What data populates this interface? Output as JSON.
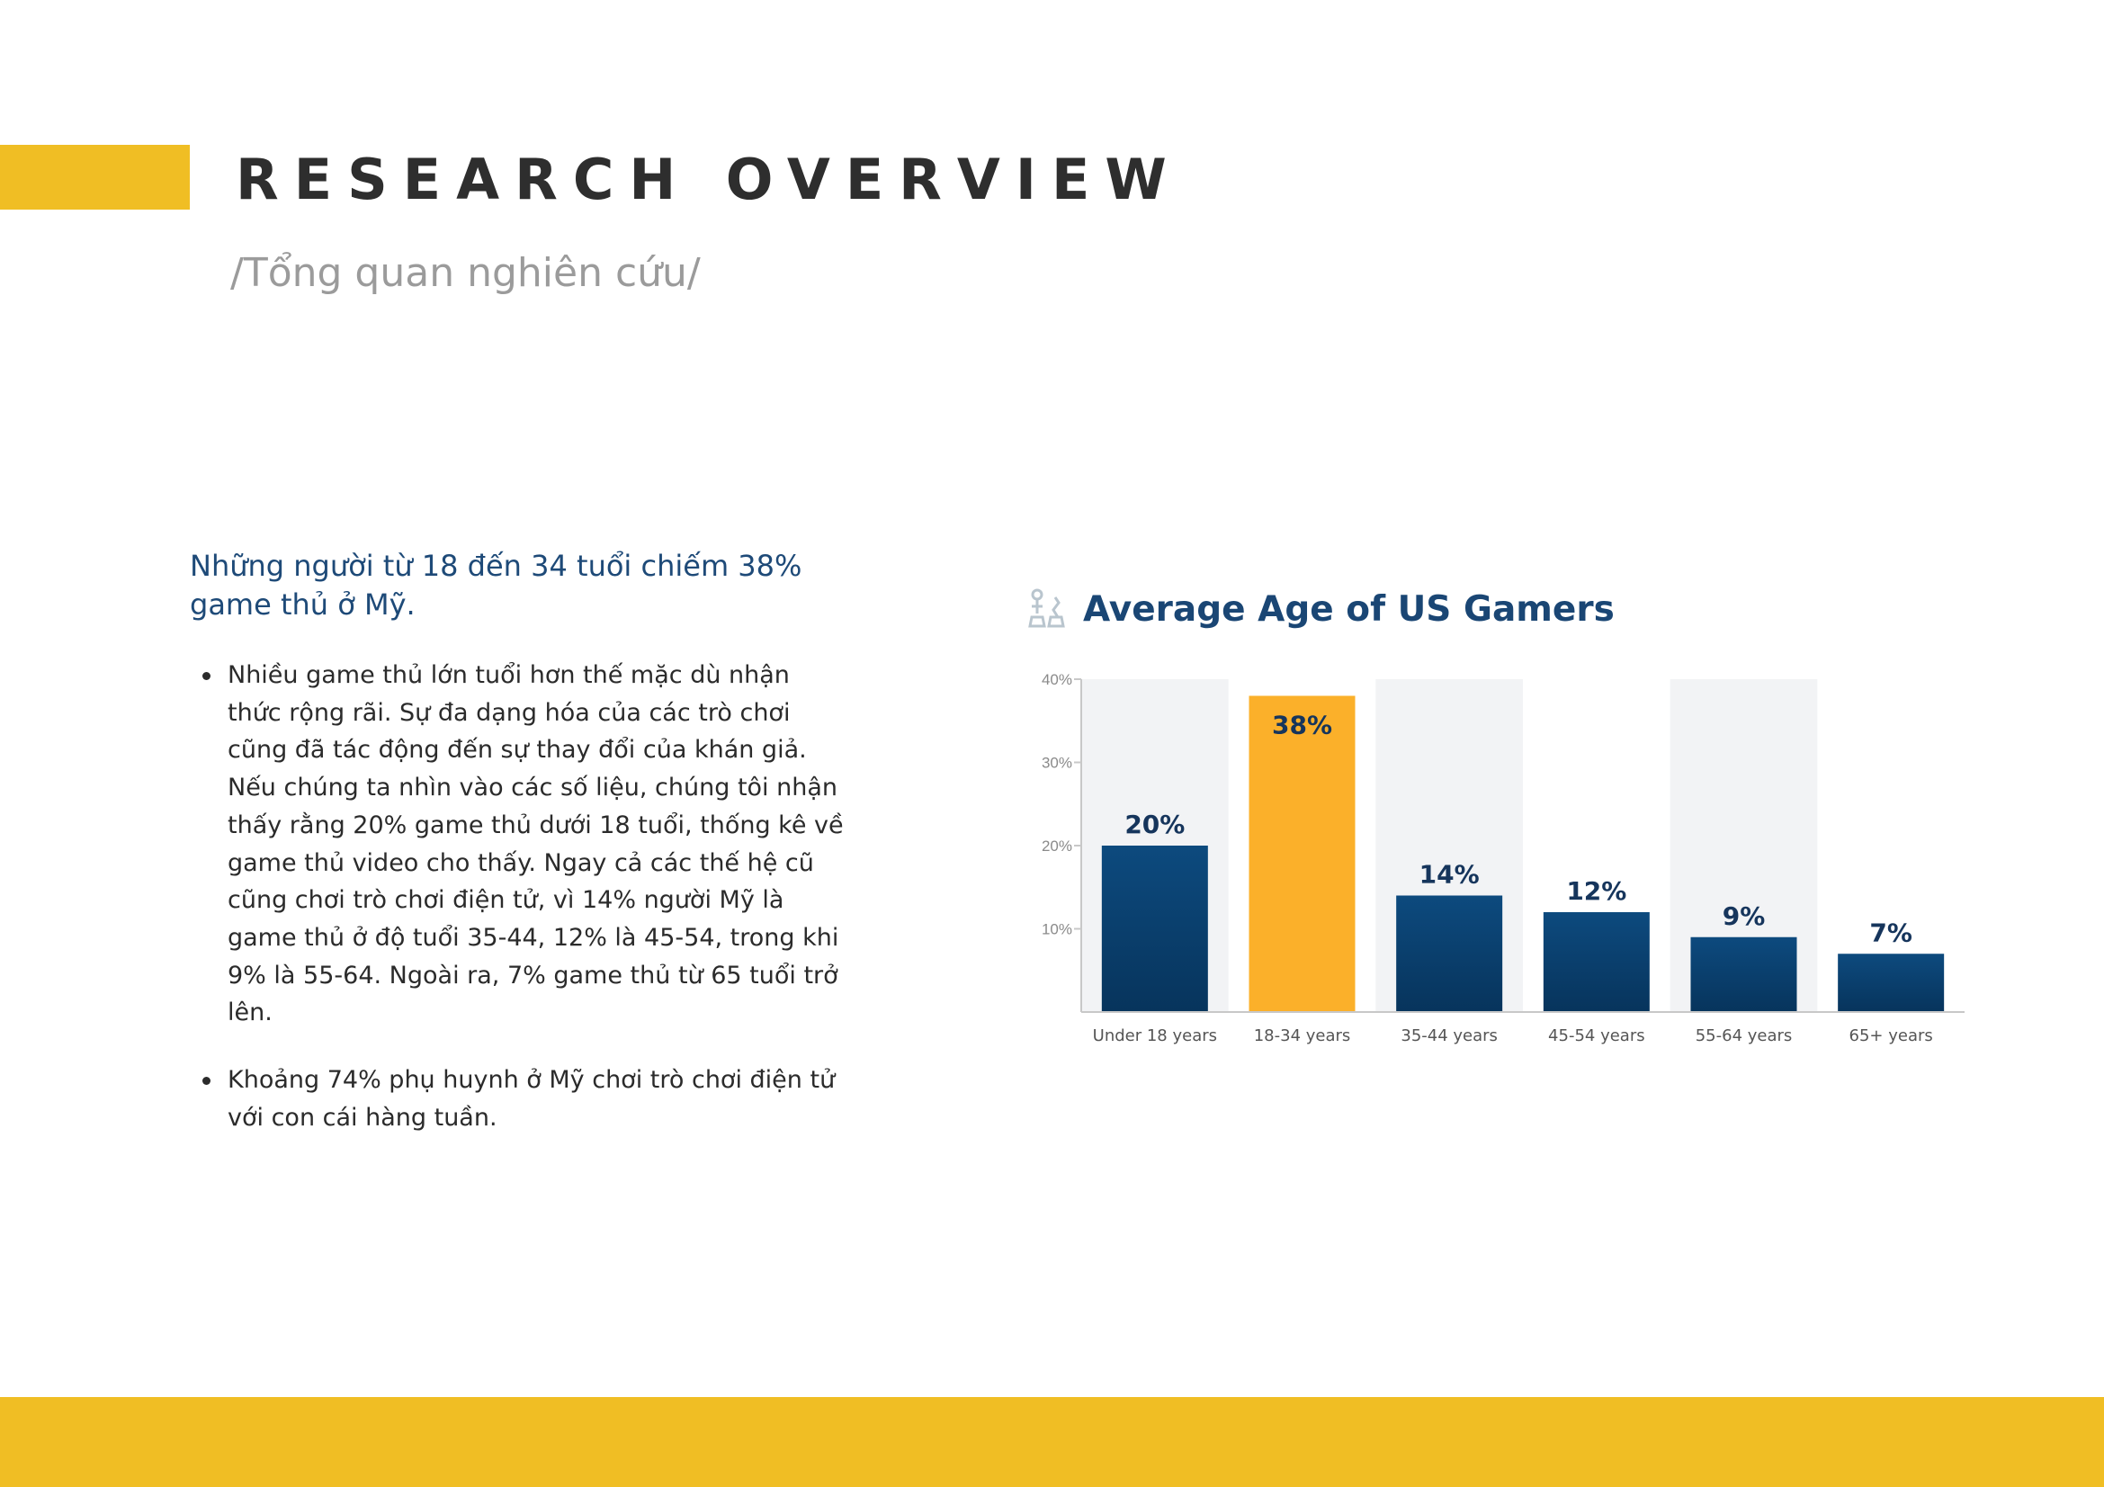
{
  "header": {
    "title": "RESEARCH OVERVIEW",
    "subtitle": "/Tổng quan nghiên cứu/"
  },
  "summary": {
    "headline": "Những người từ 18 đến 34 tuổi chiếm 38% game thủ ở Mỹ.",
    "bullets": [
      "Nhiều game thủ lớn tuổi hơn thế mặc dù nhận thức rộng rãi. Sự đa dạng hóa của các trò chơi cũng đã tác động đến sự thay đổi của khán giả. Nếu chúng ta nhìn vào các số liệu, chúng tôi nhận thấy rằng 20% game thủ dưới 18 tuổi, thống kê về game thủ video cho thấy. Ngay cả các thế hệ cũ cũng chơi trò chơi điện tử, vì 14% người Mỹ là game thủ ở độ tuổi 35-44, 12% là 45-54, trong khi 9% là 55-64. Ngoài ra, 7% game thủ từ 65 tuổi trở lên.",
      "Khoảng 74% phụ huynh ở Mỹ chơi trò chơi điện tử với con cái hàng tuần."
    ]
  },
  "chart_icon": "chess-pieces-icon",
  "chart_data": {
    "type": "bar",
    "title": "Average Age of US Gamers",
    "xlabel": "",
    "ylabel": "",
    "categories": [
      "Under 18 years",
      "18-34 years",
      "35-44 years",
      "45-54 years",
      "55-64 years",
      "65+ years"
    ],
    "values": [
      20,
      38,
      14,
      12,
      9,
      7
    ],
    "value_labels": [
      "20%",
      "38%",
      "14%",
      "12%",
      "9%",
      "7%"
    ],
    "highlight_index": 1,
    "ylim": [
      0,
      40
    ],
    "yticks": [
      10,
      20,
      30,
      40
    ],
    "ytick_labels": [
      "10%",
      "20%",
      "30%",
      "40%"
    ],
    "grid": false,
    "colors": {
      "bar": "#0d4a7e",
      "bar_dark": "#07345c",
      "highlight": "#FBB02A",
      "band": "#f2f3f5",
      "label": "#16355c",
      "axis": "#c8c8c8",
      "tick_text": "#8a8a8a",
      "category_text": "#555555"
    }
  },
  "colors": {
    "accent": "#F0BE24",
    "title_text": "#2e2e2e",
    "subtitle_text": "#9b9b9b",
    "headline_text": "#1e4a78",
    "body_text": "#2b2b2b"
  }
}
